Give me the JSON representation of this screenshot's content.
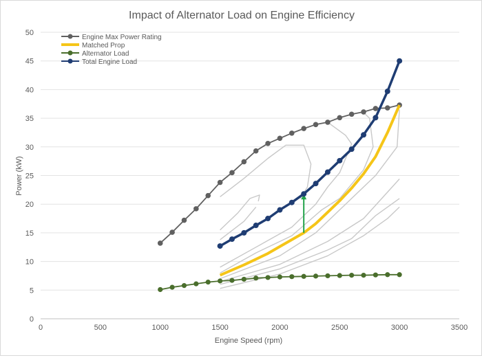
{
  "chart_data": {
    "type": "line",
    "title": "Impact of Alternator Load on Engine Efficiency",
    "xlabel": "Engine Speed (rpm)",
    "ylabel": "Power (kW)",
    "xlim": [
      0,
      3500
    ],
    "ylim": [
      0,
      50
    ],
    "xticks": [
      "0",
      "500",
      "1000",
      "1500",
      "2000",
      "2500",
      "3000",
      "3500"
    ],
    "yticks": [
      "0",
      "5",
      "10",
      "15",
      "20",
      "25",
      "30",
      "35",
      "40",
      "45",
      "50"
    ],
    "grid": "horizontal",
    "legend_position": "top-left",
    "series": [
      {
        "name": "Engine Max Power Rating",
        "color": "#606060",
        "markers": true,
        "x": [
          1000,
          1100,
          1200,
          1300,
          1400,
          1500,
          1600,
          1700,
          1800,
          1900,
          2000,
          2100,
          2200,
          2300,
          2400,
          2500,
          2600,
          2700,
          2800,
          2900,
          3000
        ],
        "y": [
          13.2,
          15.1,
          17.2,
          19.2,
          21.5,
          23.8,
          25.5,
          27.4,
          29.3,
          30.6,
          31.5,
          32.4,
          33.2,
          33.9,
          34.3,
          35.1,
          35.7,
          36.1,
          36.7,
          36.8,
          37.3
        ]
      },
      {
        "name": "Matched Prop",
        "color": "#f5c518",
        "markers": false,
        "x": [
          1500,
          1600,
          1700,
          1800,
          1900,
          2000,
          2100,
          2200,
          2300,
          2400,
          2500,
          2600,
          2700,
          2800,
          2900,
          3000
        ],
        "y": [
          7.6,
          8.5,
          9.4,
          10.4,
          11.4,
          12.6,
          13.8,
          15.0,
          16.6,
          18.6,
          20.6,
          22.8,
          25.3,
          28.3,
          32.5,
          37.3
        ]
      },
      {
        "name": "Alternator Load",
        "color": "#4a6e2c",
        "markers": true,
        "x": [
          1000,
          1100,
          1200,
          1300,
          1400,
          1500,
          1600,
          1700,
          1800,
          1900,
          2000,
          2100,
          2200,
          2300,
          2400,
          2500,
          2600,
          2700,
          2800,
          2900,
          3000
        ],
        "y": [
          5.1,
          5.5,
          5.8,
          6.1,
          6.4,
          6.6,
          6.7,
          6.9,
          7.1,
          7.2,
          7.3,
          7.35,
          7.4,
          7.45,
          7.5,
          7.55,
          7.6,
          7.6,
          7.65,
          7.7,
          7.7
        ]
      },
      {
        "name": "Total Engine Load",
        "color": "#1f3d73",
        "markers": true,
        "x": [
          1500,
          1600,
          1700,
          1800,
          1900,
          2000,
          2100,
          2200,
          2300,
          2400,
          2500,
          2600,
          2700,
          2800,
          2900,
          3000
        ],
        "y": [
          12.7,
          13.9,
          15.0,
          16.3,
          17.5,
          19.0,
          20.3,
          21.8,
          23.6,
          25.6,
          27.6,
          29.6,
          32.1,
          35.1,
          39.7,
          45.0
        ]
      }
    ],
    "annotations": [
      {
        "type": "arrow",
        "color": "#22a34a",
        "from": [
          2200,
          15.0
        ],
        "to": [
          2200,
          21.8
        ]
      }
    ]
  }
}
